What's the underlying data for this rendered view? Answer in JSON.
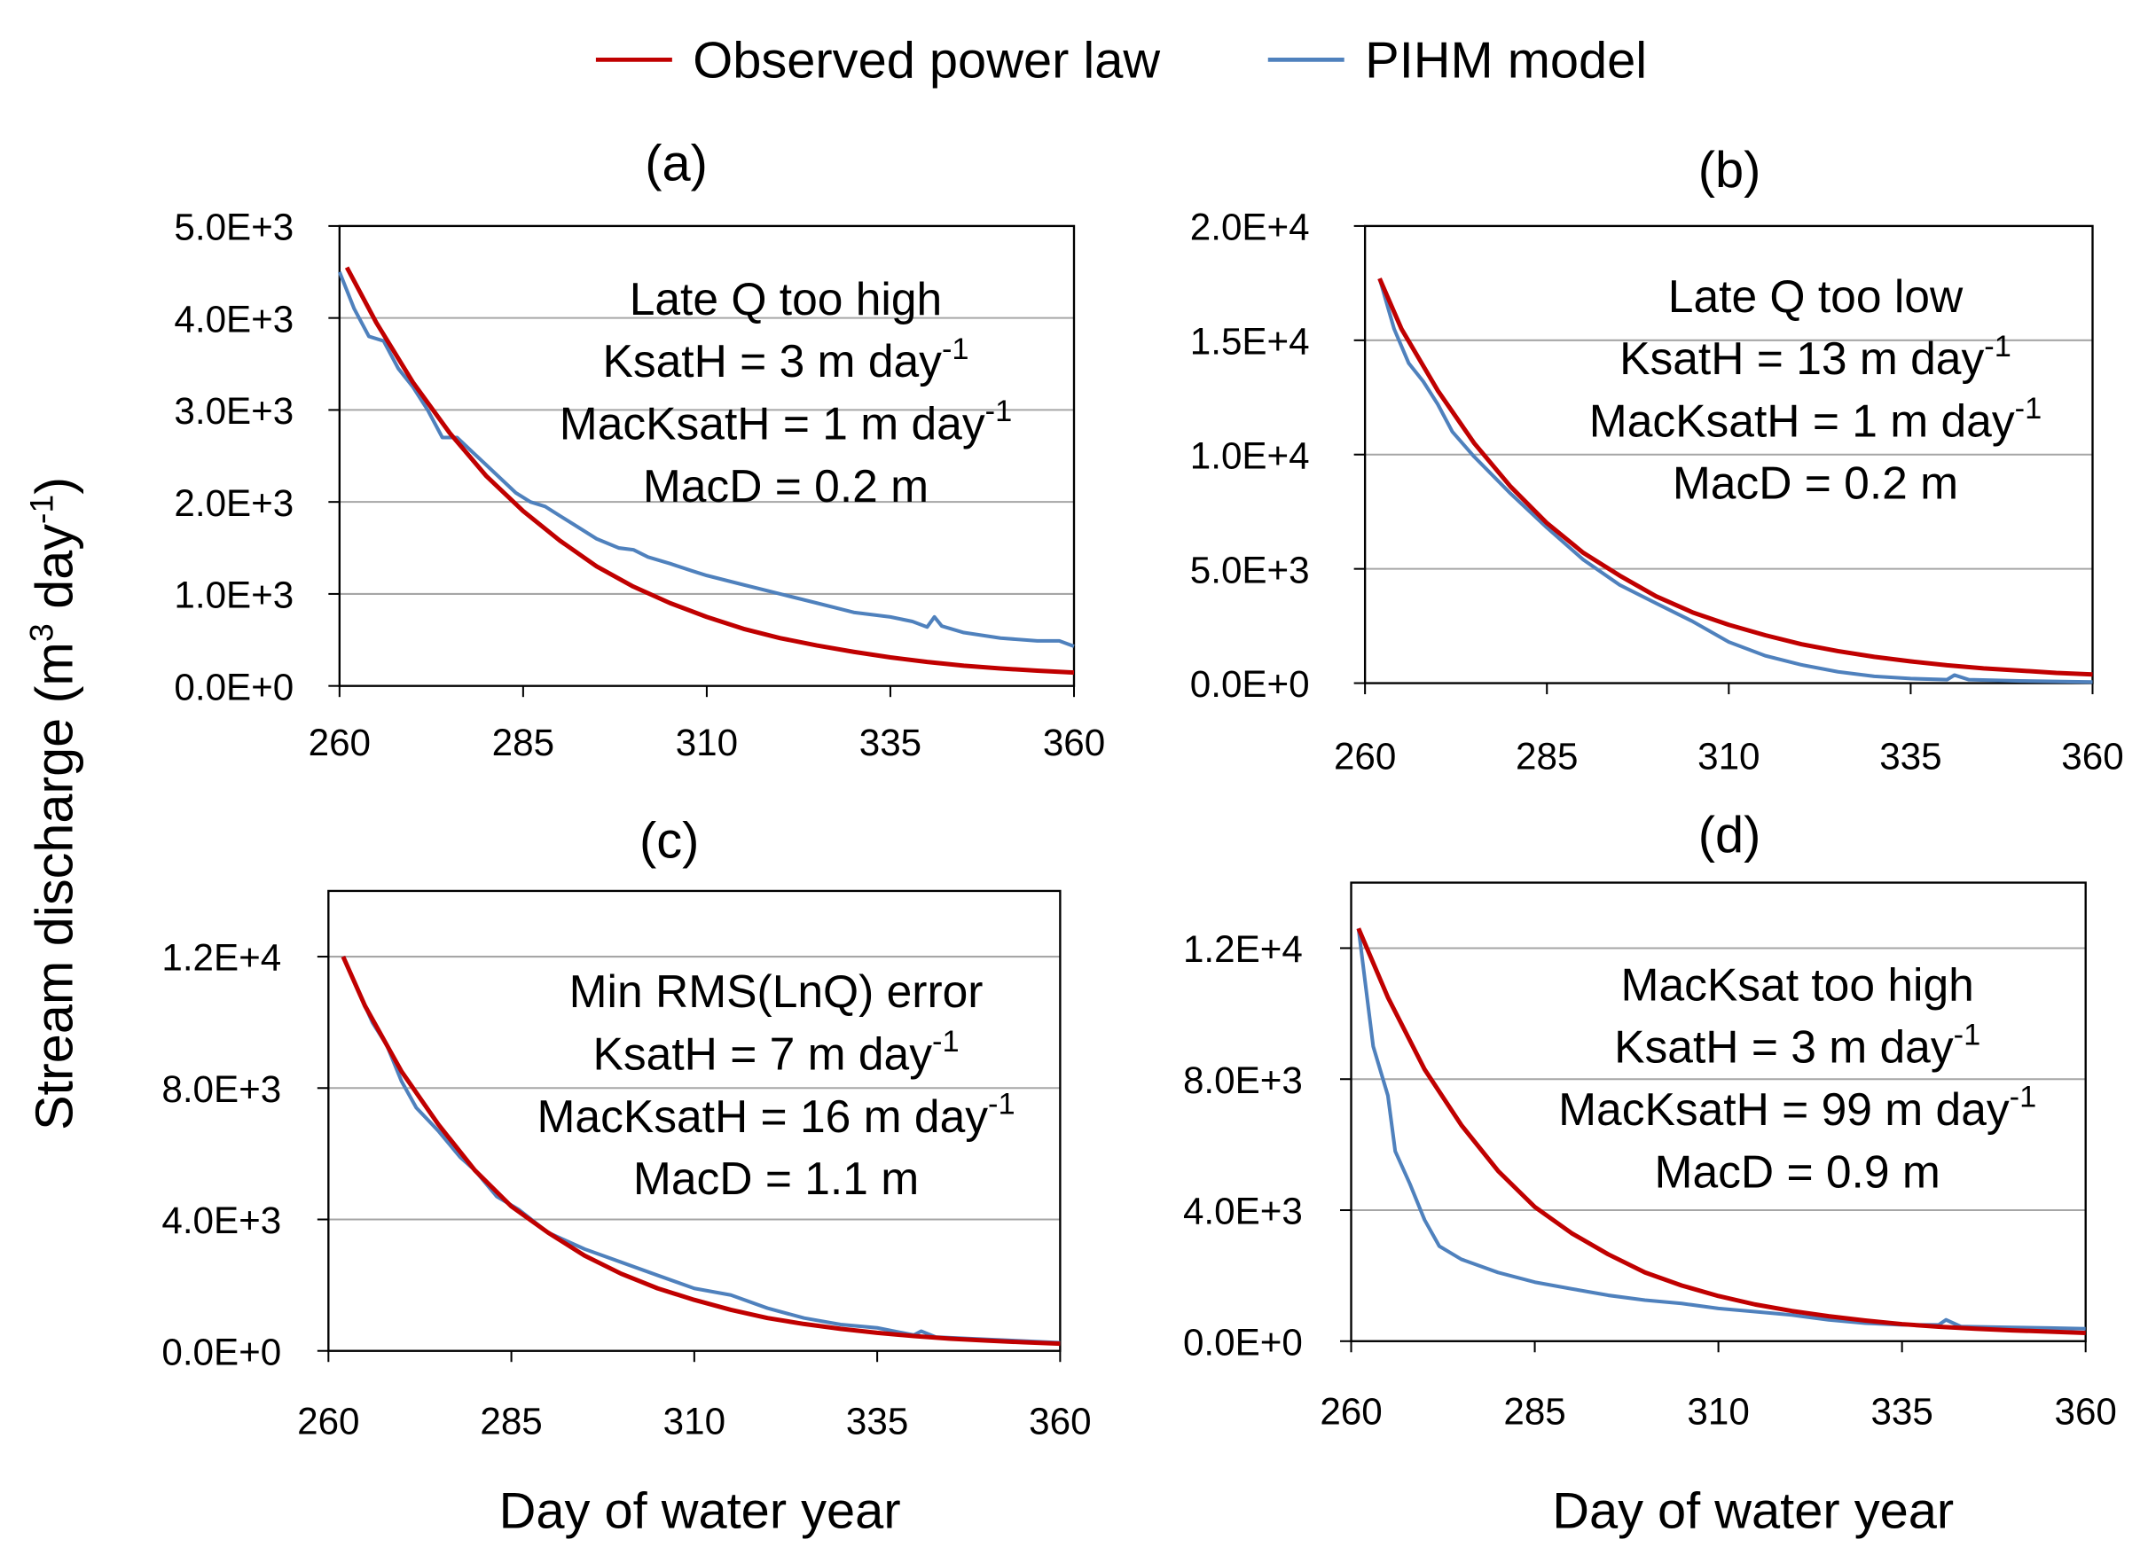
{
  "legend": {
    "items": [
      {
        "label": "Observed power law",
        "color": "#c00000"
      },
      {
        "label": "PIHM model",
        "color": "#4f81bd"
      }
    ]
  },
  "y_axis_title": {
    "prefix": "Stream discharge (m",
    "sup1": "3",
    "mid": " day",
    "sup2": "-1",
    "suffix": ")"
  },
  "x_axis_title": "Day of water year",
  "chart_data": [
    {
      "type": "line",
      "title": "(a)",
      "xlim": [
        260,
        360
      ],
      "ylim": [
        0,
        5000
      ],
      "xticks": [
        260,
        285,
        310,
        335,
        360
      ],
      "yticks": [
        0,
        1000,
        2000,
        3000,
        4000,
        5000
      ],
      "ytick_labels": [
        "0.0E+0",
        "1.0E+3",
        "2.0E+3",
        "3.0E+3",
        "4.0E+3",
        "5.0E+3"
      ],
      "annotation": [
        {
          "text": "Late Q too high",
          "sup": ""
        },
        {
          "text": "KsatH = 3 m day",
          "sup": "-1"
        },
        {
          "text": "MacKsatH = 1 m day",
          "sup": "-1"
        },
        {
          "text": "MacD = 0.2 m",
          "sup": ""
        }
      ],
      "series": [
        {
          "name": "Observed power law",
          "x": [
            261,
            265,
            270,
            275,
            280,
            285,
            290,
            295,
            300,
            305,
            310,
            315,
            320,
            325,
            330,
            335,
            340,
            345,
            350,
            355,
            360
          ],
          "y": [
            4550,
            3950,
            3300,
            2750,
            2280,
            1900,
            1580,
            1300,
            1080,
            900,
            750,
            620,
            520,
            440,
            370,
            310,
            260,
            220,
            190,
            165,
            145
          ]
        },
        {
          "name": "PIHM model",
          "x": [
            260,
            262,
            264,
            266,
            268,
            270,
            272,
            274,
            276,
            278,
            280,
            282,
            284,
            286,
            288,
            290,
            292,
            295,
            298,
            300,
            302,
            305,
            308,
            310,
            315,
            320,
            325,
            330,
            335,
            338,
            340,
            341,
            342,
            345,
            350,
            355,
            358,
            360
          ],
          "y": [
            4500,
            4100,
            3800,
            3750,
            3450,
            3250,
            3000,
            2700,
            2700,
            2550,
            2400,
            2250,
            2100,
            2000,
            1950,
            1850,
            1750,
            1600,
            1500,
            1480,
            1400,
            1330,
            1250,
            1200,
            1100,
            1000,
            900,
            800,
            750,
            700,
            640,
            750,
            650,
            580,
            520,
            490,
            490,
            430
          ]
        }
      ]
    },
    {
      "type": "line",
      "title": "(b)",
      "xlim": [
        260,
        360
      ],
      "ylim": [
        0,
        20000
      ],
      "xticks": [
        260,
        285,
        310,
        335,
        360
      ],
      "yticks": [
        0,
        5000,
        10000,
        15000,
        20000
      ],
      "ytick_labels": [
        "0.0E+0",
        "5.0E+3",
        "1.0E+4",
        "1.5E+4",
        "2.0E+4"
      ],
      "annotation": [
        {
          "text": "Late Q too low",
          "sup": ""
        },
        {
          "text": "KsatH = 13 m day",
          "sup": "-1"
        },
        {
          "text": "MacKsatH = 1 m day",
          "sup": "-1"
        },
        {
          "text": "MacD = 0.2 m",
          "sup": ""
        }
      ],
      "series": [
        {
          "name": "Observed power law",
          "x": [
            262,
            265,
            270,
            275,
            280,
            285,
            290,
            295,
            300,
            305,
            310,
            315,
            320,
            325,
            330,
            335,
            340,
            345,
            350,
            355,
            360
          ],
          "y": [
            17700,
            15500,
            12800,
            10500,
            8600,
            7000,
            5700,
            4700,
            3800,
            3100,
            2550,
            2100,
            1700,
            1400,
            1150,
            950,
            780,
            650,
            550,
            450,
            380
          ]
        },
        {
          "name": "PIHM model",
          "x": [
            262,
            264,
            266,
            268,
            270,
            272,
            275,
            280,
            285,
            290,
            295,
            300,
            305,
            310,
            315,
            320,
            325,
            330,
            335,
            340,
            341,
            343,
            350,
            360
          ],
          "y": [
            17700,
            15500,
            14000,
            13200,
            12200,
            11000,
            9900,
            8300,
            6800,
            5400,
            4300,
            3500,
            2700,
            1800,
            1200,
            800,
            500,
            300,
            200,
            150,
            350,
            150,
            100,
            50
          ]
        }
      ]
    },
    {
      "type": "line",
      "title": "(c)",
      "xlim": [
        260,
        360
      ],
      "ylim": [
        0,
        14000
      ],
      "xticks": [
        260,
        285,
        310,
        335,
        360
      ],
      "yticks": [
        0,
        4000,
        8000,
        12000
      ],
      "ytick_labels": [
        "0.0E+0",
        "4.0E+3",
        "8.0E+3",
        "1.2E+4"
      ],
      "annotation": [
        {
          "text": "Min RMS(LnQ) error",
          "sup": ""
        },
        {
          "text": "KsatH = 7 m day",
          "sup": "-1"
        },
        {
          "text": "MacKsatH = 16 m day",
          "sup": "-1"
        },
        {
          "text": "MacD = 1.1 m",
          "sup": ""
        }
      ],
      "series": [
        {
          "name": "Observed power law",
          "x": [
            262,
            265,
            270,
            275,
            280,
            285,
            290,
            295,
            300,
            305,
            310,
            315,
            320,
            325,
            330,
            335,
            340,
            345,
            350,
            355,
            360
          ],
          "y": [
            12000,
            10500,
            8500,
            6900,
            5500,
            4400,
            3600,
            2900,
            2350,
            1900,
            1550,
            1250,
            1000,
            820,
            670,
            550,
            450,
            370,
            310,
            260,
            220
          ]
        },
        {
          "name": "PIHM model",
          "x": [
            262,
            264,
            266,
            268,
            270,
            272,
            275,
            278,
            280,
            283,
            286,
            290,
            295,
            300,
            305,
            310,
            315,
            320,
            325,
            330,
            335,
            340,
            341,
            343,
            350,
            355,
            360
          ],
          "y": [
            12000,
            11000,
            10000,
            9300,
            8200,
            7400,
            6700,
            5900,
            5500,
            4700,
            4300,
            3600,
            3100,
            2700,
            2300,
            1900,
            1700,
            1300,
            1000,
            800,
            700,
            480,
            600,
            420,
            350,
            300,
            250
          ]
        }
      ]
    },
    {
      "type": "line",
      "title": "(d)",
      "xlim": [
        260,
        360
      ],
      "ylim": [
        0,
        14000
      ],
      "xticks": [
        260,
        285,
        310,
        335,
        360
      ],
      "yticks": [
        0,
        4000,
        8000,
        12000
      ],
      "ytick_labels": [
        "0.0E+0",
        "4.0E+3",
        "8.0E+3",
        "1.2E+4"
      ],
      "annotation": [
        {
          "text": "MacKsat too high",
          "sup": ""
        },
        {
          "text": "KsatH = 3 m day",
          "sup": "-1"
        },
        {
          "text": "MacKsatH = 99 m day",
          "sup": "-1"
        },
        {
          "text": "MacD = 0.9 m",
          "sup": ""
        }
      ],
      "series": [
        {
          "name": "Observed power law",
          "x": [
            261,
            265,
            270,
            275,
            280,
            285,
            290,
            295,
            300,
            305,
            310,
            315,
            320,
            325,
            330,
            335,
            340,
            345,
            350,
            355,
            360
          ],
          "y": [
            12600,
            10500,
            8300,
            6600,
            5200,
            4100,
            3300,
            2650,
            2100,
            1700,
            1380,
            1120,
            920,
            760,
            630,
            520,
            440,
            380,
            330,
            290,
            250
          ]
        },
        {
          "name": "PIHM model",
          "x": [
            261,
            262,
            263,
            265,
            266,
            268,
            270,
            272,
            275,
            280,
            285,
            290,
            295,
            300,
            305,
            310,
            315,
            320,
            325,
            330,
            335,
            340,
            341,
            343,
            350,
            355,
            360
          ],
          "y": [
            12600,
            10800,
            9000,
            7500,
            5800,
            4800,
            3700,
            2900,
            2500,
            2100,
            1800,
            1600,
            1400,
            1250,
            1150,
            1000,
            900,
            800,
            650,
            550,
            500,
            500,
            650,
            450,
            420,
            400,
            380
          ]
        }
      ]
    }
  ]
}
